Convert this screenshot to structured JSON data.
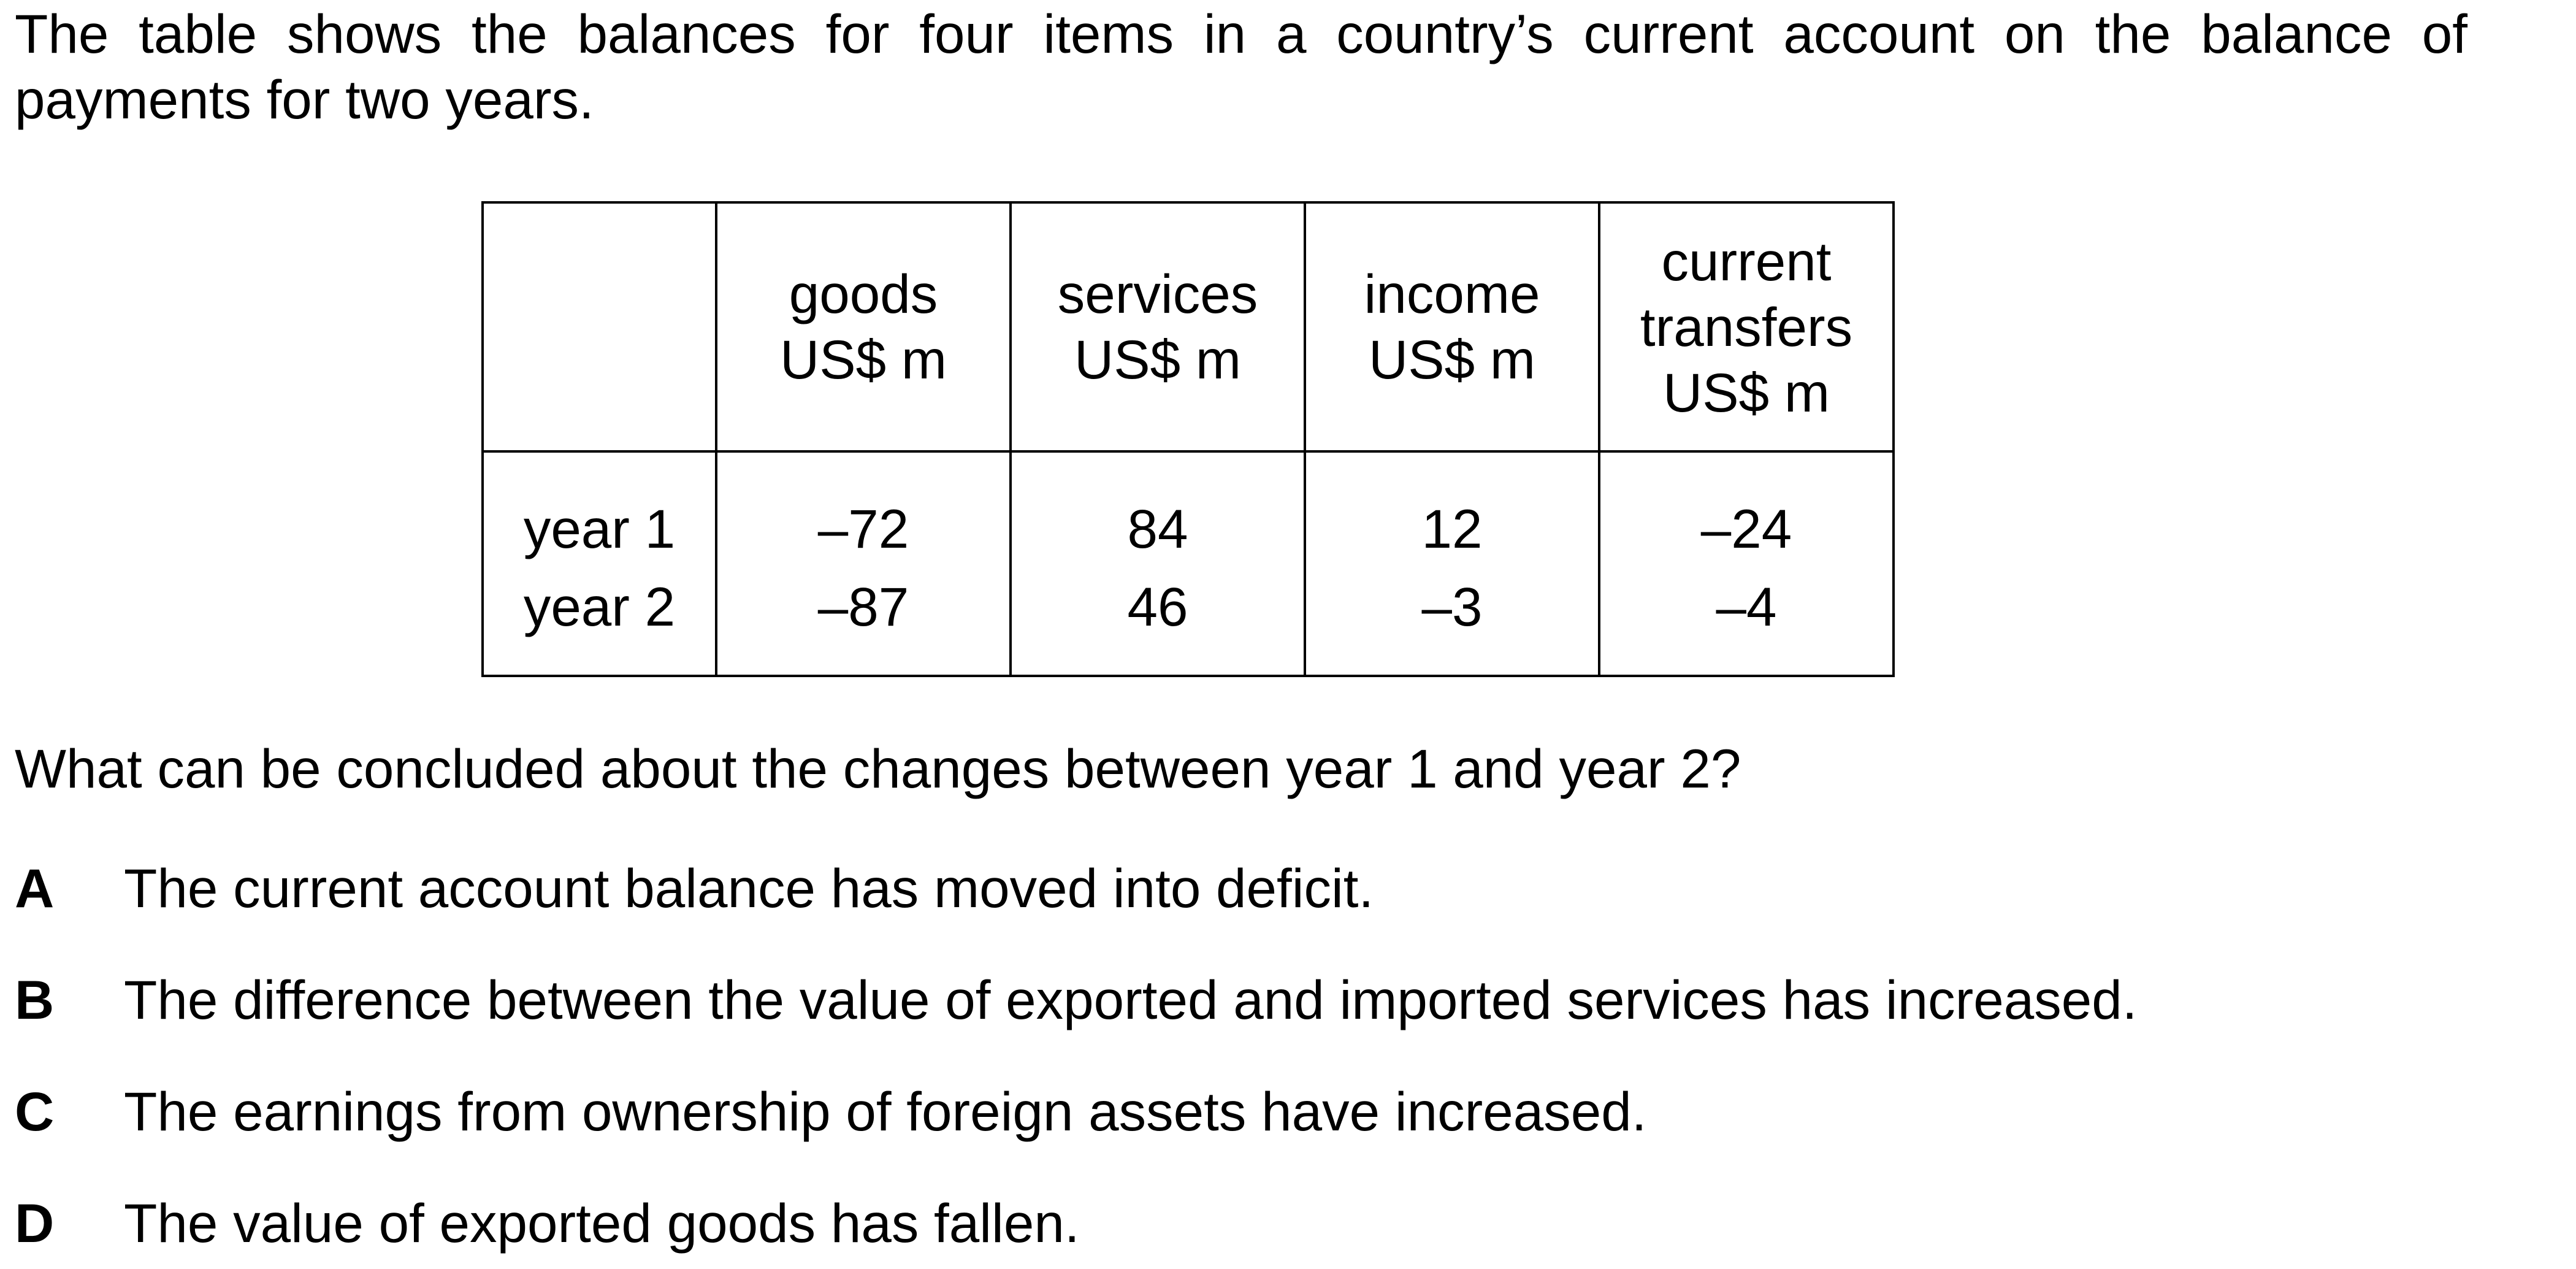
{
  "intro_text": "The table shows the balances for four items in a country’s current account on the balance of payments for two years.",
  "table": {
    "corner_label": "",
    "columns": [
      {
        "lines": [
          "goods",
          "US$ m"
        ]
      },
      {
        "lines": [
          "services",
          "US$ m"
        ]
      },
      {
        "lines": [
          "income",
          "US$ m"
        ]
      },
      {
        "lines": [
          "current",
          "transfers",
          "US$ m"
        ]
      }
    ],
    "rows": [
      {
        "label": "year 1",
        "values": [
          "–72",
          "84",
          "12",
          "–24"
        ]
      },
      {
        "label": "year 2",
        "values": [
          "–87",
          "46",
          "–3",
          "–4"
        ]
      }
    ]
  },
  "question": "What can be concluded about the changes between year 1 and year 2?",
  "options": [
    {
      "letter": "A",
      "text": "The current account balance has moved into deficit."
    },
    {
      "letter": "B",
      "text": "The difference between the value of exported and imported services has increased."
    },
    {
      "letter": "C",
      "text": "The earnings from ownership of foreign assets have increased."
    },
    {
      "letter": "D",
      "text": "The value of exported goods has fallen."
    }
  ]
}
